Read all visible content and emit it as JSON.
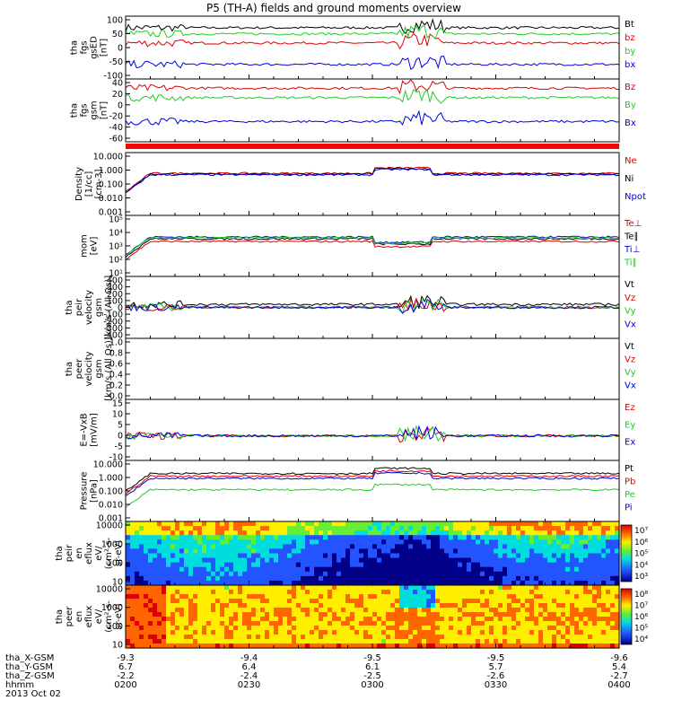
{
  "title": "P5 (TH-A) fields and ground moments overview",
  "colors": {
    "black": "#000000",
    "red": "#dd0000",
    "green": "#22cc22",
    "blue": "#0000dd",
    "bar": "#ff0000"
  },
  "x_axis": {
    "rows": [
      {
        "label": "tha_X-GSM",
        "values": [
          "-9.3",
          "-9.4",
          "-9.5",
          "-9.5",
          "-9.6"
        ]
      },
      {
        "label": "tha_Y-GSM",
        "values": [
          "6.7",
          "6.4",
          "6.1",
          "5.7",
          "5.4"
        ]
      },
      {
        "label": "tha_Z-GSM",
        "values": [
          "-2.2",
          "-2.4",
          "-2.5",
          "-2.6",
          "-2.7"
        ]
      },
      {
        "label": "hhmm",
        "values": [
          "0200",
          "0230",
          "0300",
          "0330",
          "0400"
        ]
      }
    ],
    "date": "2013 Oct 02"
  },
  "chart_data": [
    {
      "type": "line",
      "panel": "fgs_gse",
      "ylabel": [
        "tha",
        "fgs",
        "gsED",
        "[nT]"
      ],
      "yticks": [
        "100",
        "50",
        "0",
        "-50",
        "-100"
      ],
      "ylim": [
        -100,
        100
      ],
      "log": false,
      "series": [
        {
          "name": "Bt",
          "color": "black",
          "level": 65
        },
        {
          "name": "bz",
          "color": "red",
          "level": 15
        },
        {
          "name": "by",
          "color": "green",
          "level": 45
        },
        {
          "name": "bx",
          "color": "blue",
          "level": -55
        }
      ]
    },
    {
      "type": "line",
      "panel": "fgs_gsm",
      "ylabel": [
        "tha",
        "fgs",
        "gsm",
        "[nT]"
      ],
      "yticks": [
        "40",
        "20",
        "0",
        "-20",
        "-40",
        "-60"
      ],
      "ylim": [
        -70,
        40
      ],
      "log": false,
      "series": [
        {
          "name": "Bz",
          "color": "red",
          "level": 25
        },
        {
          "name": "By",
          "color": "green",
          "level": 8
        },
        {
          "name": "Bx",
          "color": "blue",
          "level": -35
        }
      ]
    },
    {
      "type": "line",
      "panel": "density",
      "ylabel": [
        "Density",
        "[1/cc]",
        "[cm-3]"
      ],
      "yticks": [
        "10.000",
        "1.000",
        "0.100",
        "0.010",
        "0.001"
      ],
      "ylim": [
        0.001,
        10
      ],
      "log": true,
      "series": [
        {
          "name": "Ne",
          "color": "red",
          "level": 0.5
        },
        {
          "name": "Ni",
          "color": "black",
          "level": 0.45
        },
        {
          "name": "Npot",
          "color": "blue",
          "level": 0.4
        }
      ]
    },
    {
      "type": "line",
      "panel": "temperature",
      "ylabel": [
        "mom",
        "[eV]"
      ],
      "yticks": [
        "10⁵",
        "10⁴",
        "10³",
        "10²",
        "10¹"
      ],
      "ylim": [
        10,
        100000
      ],
      "log": true,
      "series": [
        {
          "name": "Te⊥",
          "color": "red",
          "level": 2000
        },
        {
          "name": "Te∥",
          "color": "black",
          "level": 3000
        },
        {
          "name": "Ti⊥",
          "color": "blue",
          "level": 4000
        },
        {
          "name": "Ti∥",
          "color": "green",
          "level": 3500
        }
      ]
    },
    {
      "type": "line",
      "panel": "peir_velocity",
      "ylabel": [
        "tha",
        "peir",
        "velocity",
        "gsm",
        "[km/s (All Qs)]"
      ],
      "yticks": [
        "400",
        "300",
        "200",
        "100",
        "0",
        "-100",
        "-200",
        "-300",
        "-400"
      ],
      "ylim": [
        -400,
        400
      ],
      "log": false,
      "series": [
        {
          "name": "Vt",
          "color": "black",
          "level": 40
        },
        {
          "name": "Vz",
          "color": "red",
          "level": 0
        },
        {
          "name": "Vy",
          "color": "green",
          "level": 0
        },
        {
          "name": "Vx",
          "color": "blue",
          "level": 0
        }
      ]
    },
    {
      "type": "line",
      "panel": "peer_velocity",
      "ylabel": [
        "tha",
        "peer",
        "velocity",
        "gsm",
        "[km/s (All Qs)]"
      ],
      "yticks": [
        "1.0",
        "0.8",
        "0.6",
        "0.4",
        "0.2",
        "0.0"
      ],
      "ylim": [
        0,
        1
      ],
      "log": false,
      "series": [
        {
          "name": "Vt",
          "color": "black"
        },
        {
          "name": "Vz",
          "color": "red"
        },
        {
          "name": "Vy",
          "color": "green"
        },
        {
          "name": "Vx",
          "color": "blue"
        }
      ]
    },
    {
      "type": "line",
      "panel": "efield",
      "ylabel": [
        "E=-VxB",
        "[mV/m]"
      ],
      "yticks": [
        "15",
        "10",
        "5",
        "0",
        "-5",
        "-10"
      ],
      "ylim": [
        -10,
        15
      ],
      "log": false,
      "series": [
        {
          "name": "Ez",
          "color": "red",
          "level": 0
        },
        {
          "name": "Ey",
          "color": "green",
          "level": 0
        },
        {
          "name": "Ex",
          "color": "blue",
          "level": 0
        }
      ]
    },
    {
      "type": "line",
      "panel": "pressure",
      "ylabel": [
        "Pressure",
        "[nPa]"
      ],
      "yticks": [
        "10.000",
        "1.000",
        "0.100",
        "0.010",
        "0.001"
      ],
      "ylim": [
        0.001,
        10
      ],
      "log": true,
      "series": [
        {
          "name": "Pt",
          "color": "black",
          "level": 1.5
        },
        {
          "name": "Pb",
          "color": "red",
          "level": 1.0
        },
        {
          "name": "Pe",
          "color": "green",
          "level": 0.12
        },
        {
          "name": "Pi",
          "color": "blue",
          "level": 0.7
        }
      ]
    },
    {
      "type": "heatmap",
      "panel": "peir_spectrogram",
      "ylabel": [
        "tha",
        "peir",
        "en",
        "eflux",
        "eV/",
        "(cm²-s-",
        "sr-eV)"
      ],
      "yticks": [
        "10000",
        "1000",
        "100",
        "10"
      ],
      "ylim": [
        10,
        20000
      ],
      "log": true,
      "colorbar": [
        "10⁷",
        "10⁶",
        "10⁵",
        "10⁴",
        "10³"
      ]
    },
    {
      "type": "heatmap",
      "panel": "peer_spectrogram",
      "ylabel": [
        "tha",
        "peer",
        "en",
        "eflux",
        "eV/",
        "(cm²-s-",
        "sr-eV)"
      ],
      "yticks": [
        "10000",
        "1000",
        "100",
        "10"
      ],
      "ylim": [
        10,
        20000
      ],
      "log": true,
      "colorbar": [
        "10⁸",
        "10⁷",
        "10⁶",
        "10⁵",
        "10⁴"
      ]
    }
  ]
}
